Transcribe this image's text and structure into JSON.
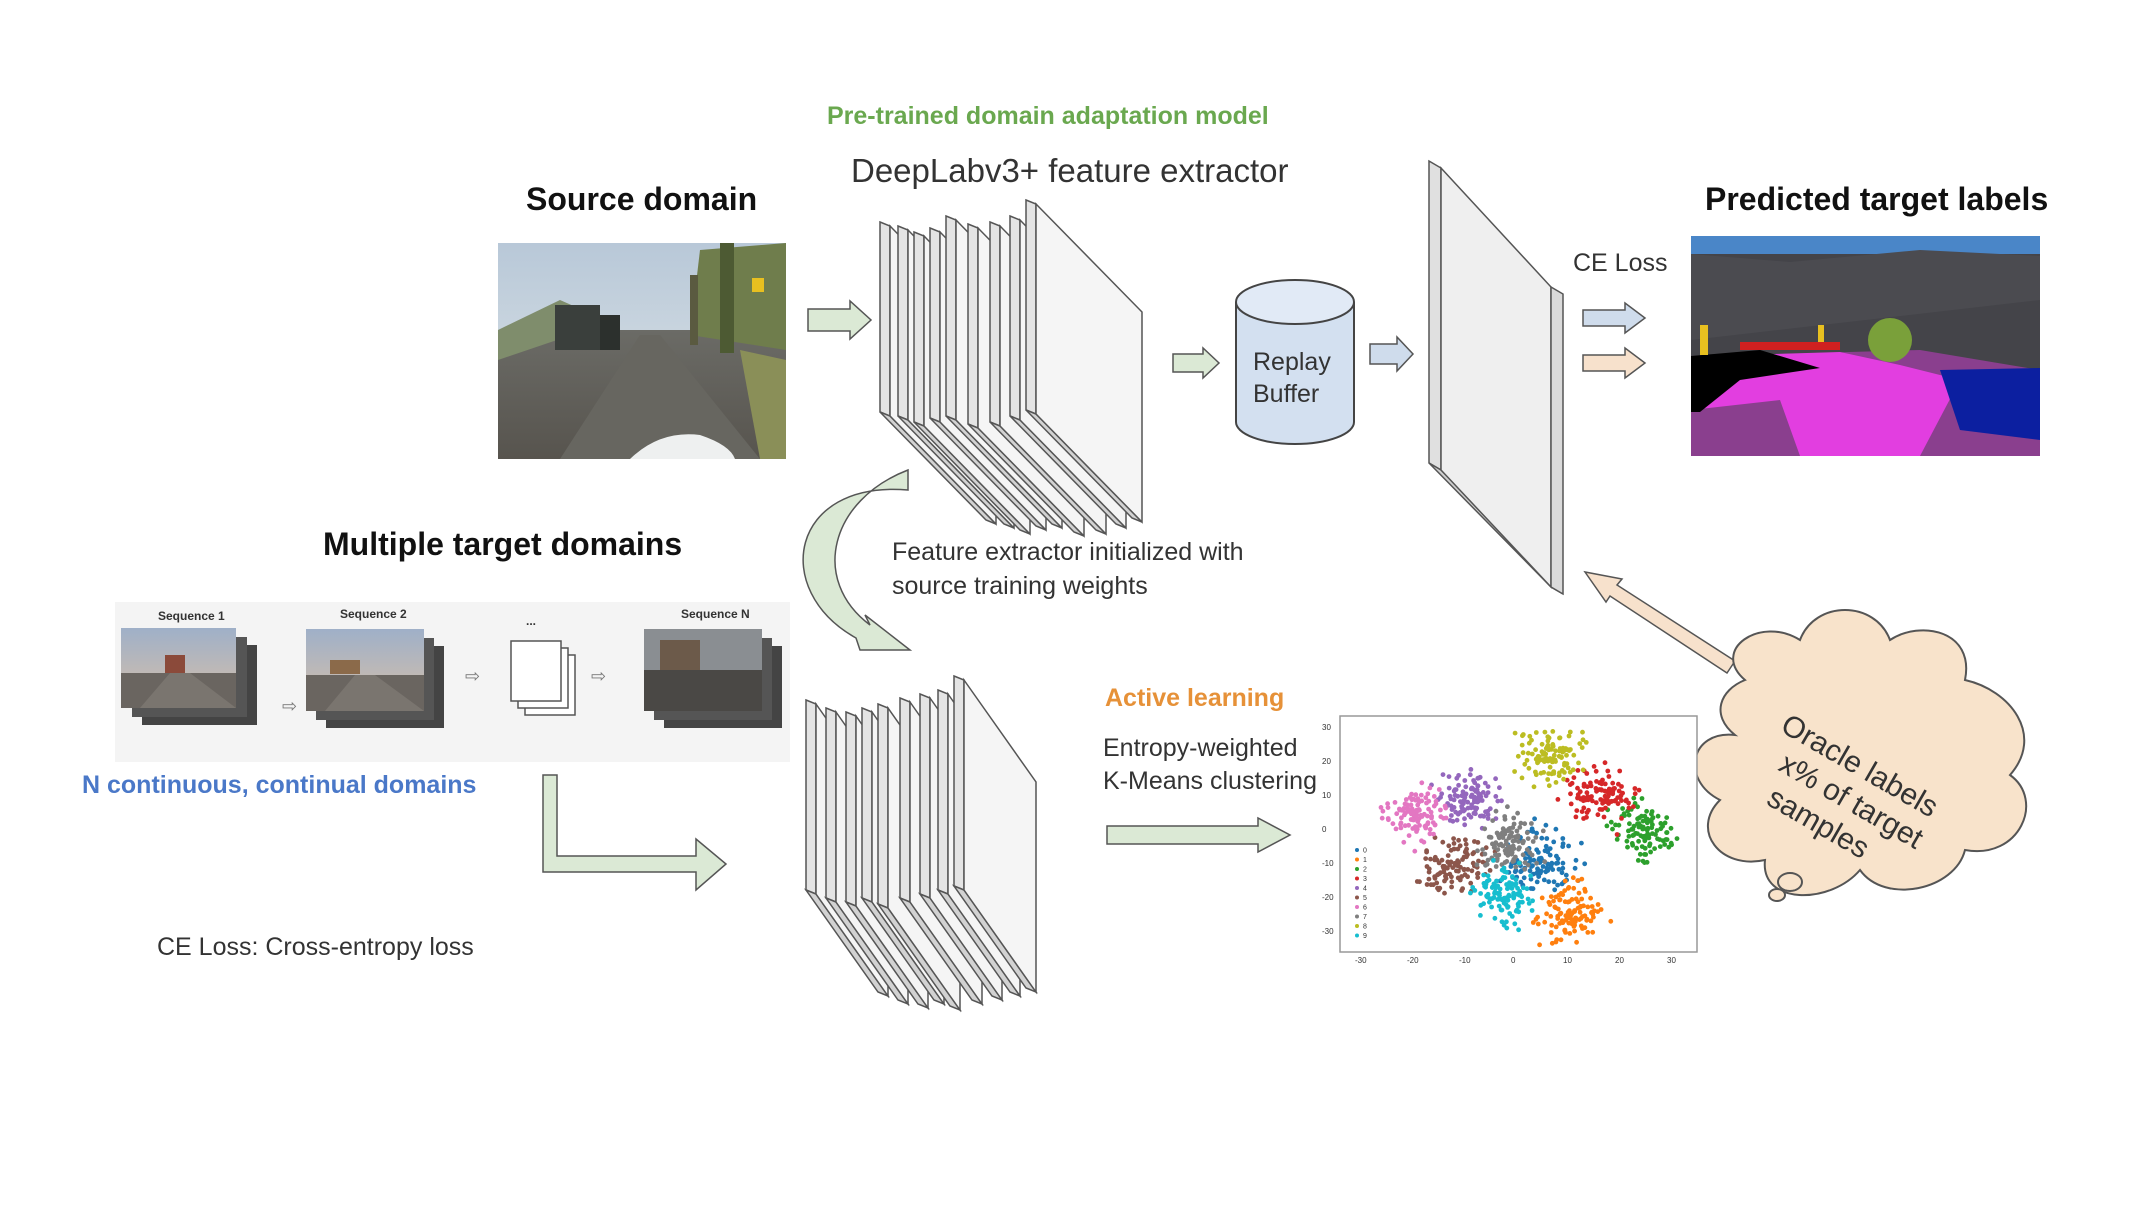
{
  "titles": {
    "pretrained": "Pre-trained domain adaptation model",
    "deeplab": "DeepLabv3+ feature extractor",
    "source_domain": "Source domain",
    "predicted_labels": "Predicted target labels",
    "multiple_targets": "Multiple target domains",
    "continuous_domains": "N continuous, continual domains",
    "active_learning": "Active learning"
  },
  "labels": {
    "ce_loss": "CE Loss",
    "replay_line1": "Replay",
    "replay_line2": "Buffer",
    "feature_init_line1": "Feature extractor initialized with",
    "feature_init_line2": "source training weights",
    "entropy_line1": "Entropy-weighted",
    "entropy_line2": "K-Means clustering",
    "oracle_line1": "Oracle labels",
    "oracle_line2": "x% of target",
    "oracle_line3": "samples",
    "footnote": "CE Loss: Cross-entropy loss"
  },
  "sequences": {
    "seq1": "Sequence 1",
    "seq2": "Sequence 2",
    "dots": "...",
    "seqN": "Sequence N"
  },
  "scatter": {
    "x_ticks": [
      "-30",
      "-20",
      "-10",
      "0",
      "10",
      "20",
      "30"
    ],
    "y_ticks": [
      "30",
      "20",
      "10",
      "0",
      "-10",
      "-20",
      "-30"
    ],
    "legend": [
      "0",
      "1",
      "2",
      "3",
      "4",
      "5",
      "6",
      "7",
      "8",
      "9"
    ],
    "cluster_colors": [
      "#1f77b4",
      "#ff7f0e",
      "#2ca02c",
      "#d62728",
      "#9467bd",
      "#8c564b",
      "#e377c2",
      "#7f7f7f",
      "#bcbd22",
      "#17becf"
    ]
  },
  "colors": {
    "green_title": "#6aa84f",
    "orange_title": "#e69138",
    "blue_title": "#4a78c8",
    "arrow_green": "#dbe9d5",
    "arrow_blue": "#cfdcec",
    "arrow_peach": "#f7e1cc",
    "cylinder": "#d3e0f0",
    "cloud": "#f8e3cb"
  }
}
